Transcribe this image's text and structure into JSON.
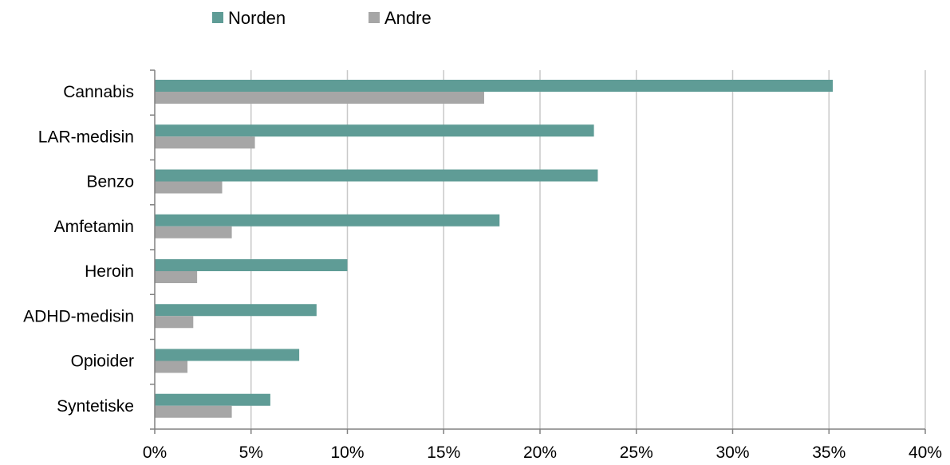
{
  "chart_data": {
    "type": "bar",
    "orientation": "horizontal",
    "categories": [
      "Cannabis",
      "LAR-medisin",
      "Benzo",
      "Amfetamin",
      "Heroin",
      "ADHD-medisin",
      "Opioider",
      "Syntetiske"
    ],
    "series": [
      {
        "name": "Norden",
        "color": "#5f9c96",
        "values": [
          35.2,
          22.8,
          23.0,
          17.9,
          10.0,
          8.4,
          7.5,
          6.0
        ]
      },
      {
        "name": "Andre",
        "color": "#a6a6a6",
        "values": [
          17.1,
          5.2,
          3.5,
          4.0,
          2.2,
          2.0,
          1.7,
          4.0
        ]
      }
    ],
    "xlim": [
      0,
      40
    ],
    "x_ticks": [
      0,
      5,
      10,
      15,
      20,
      25,
      30,
      35,
      40
    ],
    "x_tick_labels": [
      "0%",
      "5%",
      "10%",
      "15%",
      "20%",
      "25%",
      "30%",
      "35%",
      "40%"
    ],
    "value_unit": "%",
    "title": "",
    "xlabel": "",
    "ylabel": "",
    "grid": "vertical",
    "legend_position": "top"
  }
}
